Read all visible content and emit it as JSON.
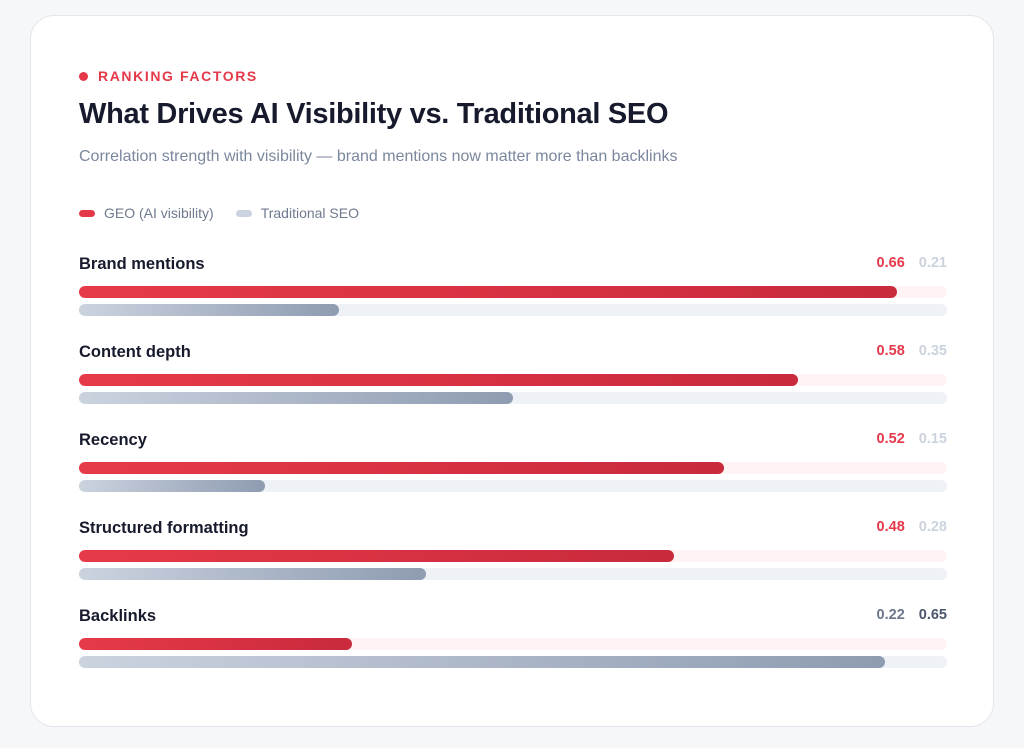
{
  "header": {
    "eyebrow": "RANKING FACTORS",
    "title": "What Drives AI Visibility vs. Traditional SEO",
    "subtitle": "Correlation strength with visibility — brand mentions now matter more than backlinks"
  },
  "legend": [
    {
      "label": "GEO (AI visibility)",
      "color": "#e5394a"
    },
    {
      "label": "Traditional SEO",
      "color": "#cbd3df"
    }
  ],
  "chart_data": {
    "type": "bar",
    "orientation": "horizontal",
    "title": "What Drives AI Visibility vs. Traditional SEO",
    "categories": [
      "Brand mentions",
      "Content depth",
      "Recency",
      "Structured formatting",
      "Backlinks"
    ],
    "series": [
      {
        "name": "GEO (AI visibility)",
        "values": [
          0.66,
          0.58,
          0.52,
          0.48,
          0.22
        ],
        "labels": [
          "0.66",
          "0.58",
          "0.52",
          "0.48",
          "0.22"
        ]
      },
      {
        "name": "Traditional SEO",
        "values": [
          0.21,
          0.35,
          0.15,
          0.28,
          0.65
        ],
        "labels": [
          "0.21",
          "0.35",
          "0.15",
          "0.28",
          "0.65"
        ]
      }
    ],
    "xlim": [
      0,
      0.7
    ],
    "grid": false,
    "legend_position": "top-left"
  }
}
